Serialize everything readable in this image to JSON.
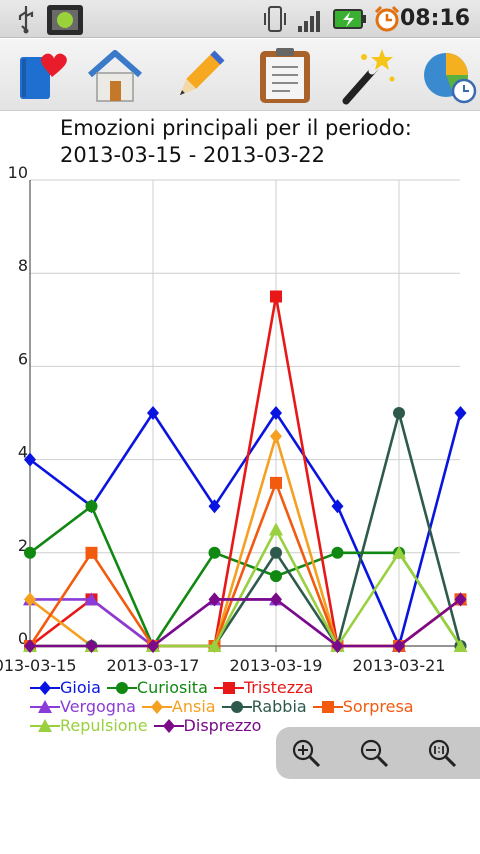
{
  "status": {
    "time": "08:16"
  },
  "toolbar": {
    "items": [
      {
        "icon": "diary-heart-icon"
      },
      {
        "icon": "home-icon"
      },
      {
        "icon": "pencil-icon"
      },
      {
        "icon": "clipboard-icon"
      },
      {
        "icon": "magic-wand-icon"
      },
      {
        "icon": "pie-chart-clock-icon"
      }
    ]
  },
  "chart_data": {
    "type": "line",
    "title": "Emozioni principali per il periodo:",
    "subtitle": "2013-03-15 - 2013-03-22",
    "x": [
      "2013-03-15",
      "2013-03-16",
      "2013-03-17",
      "2013-03-18",
      "2013-03-19",
      "2013-03-20",
      "2013-03-21",
      "2013-03-22"
    ],
    "x_tick_labels": [
      "2013-03-15",
      "2013-03-17",
      "2013-03-19",
      "2013-03-21"
    ],
    "y_ticks": [
      "0",
      "2",
      "4",
      "6",
      "8",
      "10"
    ],
    "ylim": [
      0,
      10
    ],
    "grid": true,
    "legend_position": "bottom-left",
    "series": [
      {
        "name": "Gioia",
        "color": "#0a14e0",
        "marker": "diamond",
        "values": [
          4,
          3,
          5,
          3,
          5,
          3,
          0,
          5
        ]
      },
      {
        "name": "Curiosita",
        "color": "#118811",
        "marker": "circle",
        "values": [
          2,
          3,
          0,
          2,
          1.5,
          2,
          2,
          0
        ]
      },
      {
        "name": "Tristezza",
        "color": "#e81818",
        "marker": "square",
        "values": [
          0,
          1,
          0,
          0,
          7.5,
          0,
          0,
          1
        ]
      },
      {
        "name": "Vergogna",
        "color": "#8a3cd8",
        "marker": "triangle",
        "values": [
          1,
          1,
          0,
          1,
          1,
          0,
          0,
          1
        ]
      },
      {
        "name": "Ansia",
        "color": "#f5a020",
        "marker": "diamond",
        "values": [
          1,
          0,
          0,
          0,
          4.5,
          0,
          0,
          1
        ]
      },
      {
        "name": "Rabbia",
        "color": "#2e5a4e",
        "marker": "circle",
        "values": [
          0,
          0,
          0,
          0,
          2,
          0,
          5,
          0
        ]
      },
      {
        "name": "Sorpresa",
        "color": "#f25a10",
        "marker": "square",
        "values": [
          0,
          2,
          0,
          0,
          3.5,
          0,
          0,
          1
        ]
      },
      {
        "name": "Repulsione",
        "color": "#99d040",
        "marker": "triangle",
        "values": [
          0,
          0,
          0,
          0,
          2.5,
          0,
          2,
          0
        ]
      },
      {
        "name": "Disprezzo",
        "color": "#7a0a8a",
        "marker": "diamond",
        "values": [
          0,
          0,
          0,
          1,
          1,
          0,
          0,
          1
        ]
      }
    ]
  },
  "zoom": {
    "buttons": [
      {
        "icon": "zoom-in-icon"
      },
      {
        "icon": "zoom-out-icon"
      },
      {
        "icon": "zoom-reset-icon"
      }
    ]
  }
}
